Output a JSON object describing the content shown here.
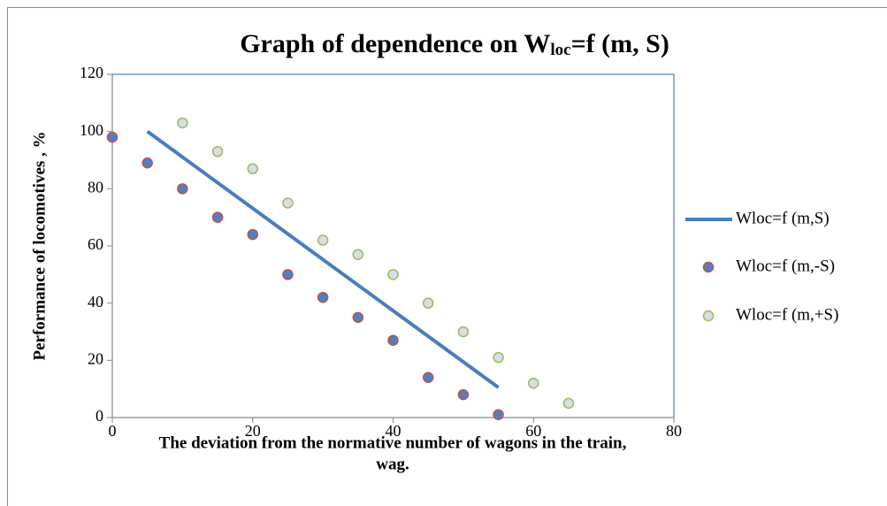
{
  "chart_data": {
    "type": "scatter",
    "title": [
      "Graph of dependence on W",
      "loc",
      "=f (m, S)"
    ],
    "xlabel": [
      "The deviation from the normative number  of wagons in the train,",
      "wag."
    ],
    "ylabel": "Performance of locomotives , %",
    "xlim": [
      0,
      80
    ],
    "xticks": [
      0,
      20,
      40,
      60,
      80
    ],
    "ylim": [
      0,
      120
    ],
    "yticks": [
      0,
      20,
      40,
      60,
      80,
      100,
      120
    ],
    "legend": "right",
    "series": [
      {
        "name": "Wloc=f (m,S)",
        "style": "line",
        "color": "#4a7ebb",
        "x": [
          5,
          55
        ],
        "values": [
          100,
          10.5
        ]
      },
      {
        "name": "Wloc=f (m,-S)",
        "style": "markers",
        "color": "#4f81bd",
        "edge": "#c0504d",
        "x": [
          0,
          5,
          10,
          15,
          20,
          25,
          30,
          35,
          40,
          45,
          50,
          55
        ],
        "values": [
          98,
          89,
          80,
          70,
          64,
          50,
          42,
          35,
          27,
          14,
          8,
          1
        ]
      },
      {
        "name": "Wloc=f (m,+S)",
        "style": "markers",
        "color": "#d9dde8",
        "edge": "#9bbb59",
        "x": [
          10,
          15,
          20,
          25,
          30,
          35,
          40,
          45,
          50,
          55,
          60,
          65
        ],
        "values": [
          103,
          93,
          87,
          75,
          62,
          57,
          50,
          40,
          30,
          21,
          12,
          5
        ]
      }
    ]
  }
}
